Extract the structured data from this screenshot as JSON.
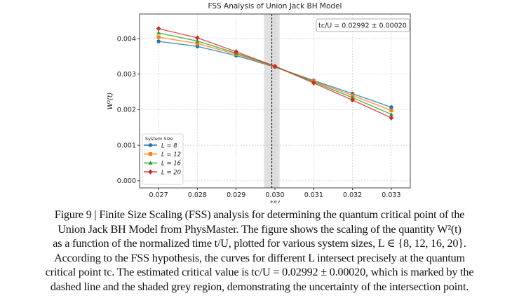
{
  "chart_data": {
    "type": "line",
    "title": "FSS Analysis of Union Jack BH Model",
    "xlabel": "t/U",
    "ylabel": "W²(t)",
    "x": [
      0.027,
      0.028,
      0.029,
      0.03,
      0.031,
      0.032,
      0.033
    ],
    "xticks": [
      "0.027",
      "0.028",
      "0.029",
      "0.030",
      "0.031",
      "0.032",
      "0.033"
    ],
    "yticks": [
      "0.000",
      "0.001",
      "0.002",
      "0.003",
      "0.004"
    ],
    "ytick_values": [
      0,
      0.001,
      0.002,
      0.003,
      0.004
    ],
    "xlim": [
      0.02651,
      0.03349
    ],
    "ylim": [
      -0.0002,
      0.00469
    ],
    "grid": true,
    "legend_title": "System Size",
    "legend_position": "lower-left",
    "series": [
      {
        "name": "L = 8",
        "color": "#1f77b4",
        "marker": "circle",
        "values": [
          0.00392,
          0.00378,
          0.00352,
          0.0032,
          0.00282,
          0.00245,
          0.00207
        ]
      },
      {
        "name": "L = 12",
        "color": "#ff7f0e",
        "marker": "square",
        "values": [
          0.00404,
          0.00386,
          0.00356,
          0.00321,
          0.0028,
          0.0024,
          0.00198
        ]
      },
      {
        "name": "L = 16",
        "color": "#2ca02c",
        "marker": "triangle",
        "values": [
          0.00416,
          0.00393,
          0.00359,
          0.00322,
          0.00278,
          0.00234,
          0.00187
        ]
      },
      {
        "name": "L = 20",
        "color": "#d62728",
        "marker": "diamond",
        "values": [
          0.00428,
          0.00402,
          0.00363,
          0.00322,
          0.00275,
          0.00227,
          0.00177
        ]
      }
    ],
    "critical_point": {
      "value": 0.02992,
      "error": 0.0002,
      "annotation": "tc/U = 0.02992 ± 0.00020"
    }
  },
  "caption": [
    "Figure 9 | Finite Size Scaling (FSS) analysis for determining the quantum critical point of the",
    "Union Jack BH Model from PhysMaster. The figure shows the scaling of the quantity W²(t)",
    "as a function of the normalized time t/U, plotted for various system sizes, L ∈ {8, 12, 16, 20}.",
    "According to the FSS hypothesis, the curves for different L intersect precisely at the quantum",
    "critical point tc. The estimated critical value is tc/U = 0.02992 ± 0.00020, which is marked by the",
    "dashed line and the shaded grey region, demonstrating the uncertainty of the intersection point."
  ]
}
